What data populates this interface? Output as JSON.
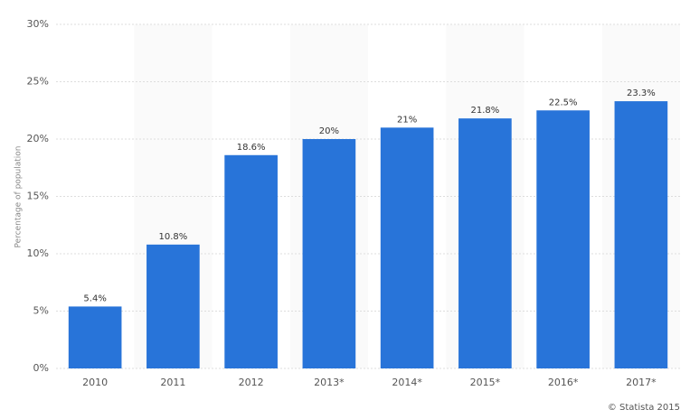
{
  "chart_data": {
    "type": "bar",
    "y_label": "Percentage of population",
    "credit": "© Statista 2015",
    "categories": [
      "2010",
      "2011",
      "2012",
      "2013*",
      "2014*",
      "2015*",
      "2016*",
      "2017*"
    ],
    "values": [
      5.4,
      10.8,
      18.6,
      20,
      21,
      21.8,
      22.5,
      23.3
    ],
    "value_labels": [
      "5.4%",
      "10.8%",
      "18.6%",
      "20%",
      "21%",
      "21.8%",
      "22.5%",
      "23.3%"
    ],
    "color": "#2874d9",
    "ylim": [
      0,
      30
    ],
    "yticks": [
      {
        "value": 0,
        "label": "0%"
      },
      {
        "value": 5,
        "label": "5%"
      },
      {
        "value": 10,
        "label": "10%"
      },
      {
        "value": 15,
        "label": "15%"
      },
      {
        "value": 20,
        "label": "20%"
      },
      {
        "value": 25,
        "label": "25%"
      },
      {
        "value": 30,
        "label": "30%"
      }
    ],
    "grid": true
  }
}
